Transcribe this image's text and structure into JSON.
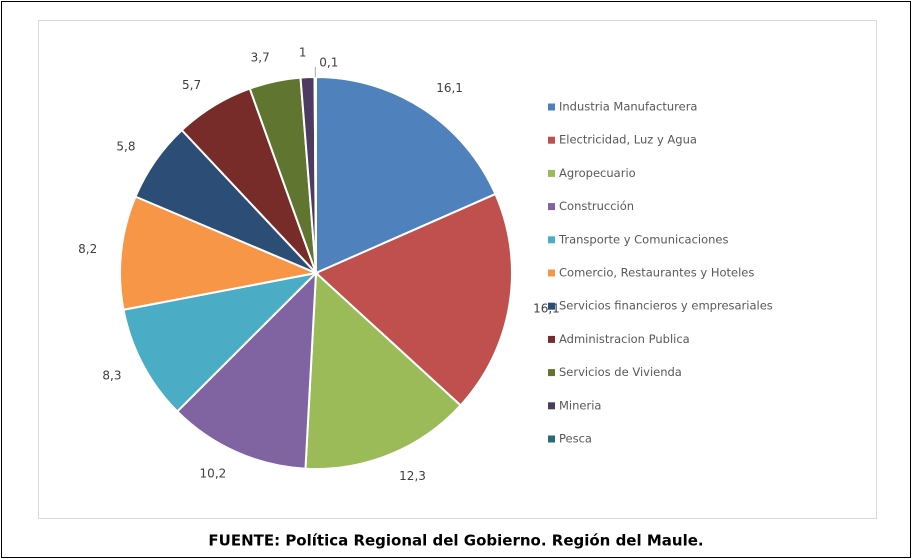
{
  "chart_data": {
    "type": "pie",
    "categories": [
      "Industria Manufacturera",
      "Electricidad, Luz y Agua",
      "Agropecuario",
      "Construcción",
      "Transporte y Comunicaciones",
      "Comercio, Restaurantes y Hoteles",
      "Servicios financieros y empresariales",
      "Administracion Publica",
      "Servicios de Vivienda",
      "Mineria",
      "Pesca"
    ],
    "values": [
      16.1,
      16.1,
      12.3,
      10.2,
      8.3,
      8.2,
      5.8,
      5.7,
      3.7,
      1,
      0.1
    ],
    "value_labels": [
      "16,1",
      "16,1",
      "12,3",
      "10,2",
      "8,3",
      "8,2",
      "5,8",
      "5,7",
      "3,7",
      "1",
      "0,1"
    ],
    "colors": [
      "#4f81bd",
      "#c0504d",
      "#9bbb59",
      "#8064a2",
      "#4bacc6",
      "#f79646",
      "#2c4d75",
      "#772c2a",
      "#5f7530",
      "#4d3b62",
      "#276a7c"
    ],
    "legend": "right"
  },
  "footer": "FUENTE: Política Regional del Gobierno. Región del Maule."
}
